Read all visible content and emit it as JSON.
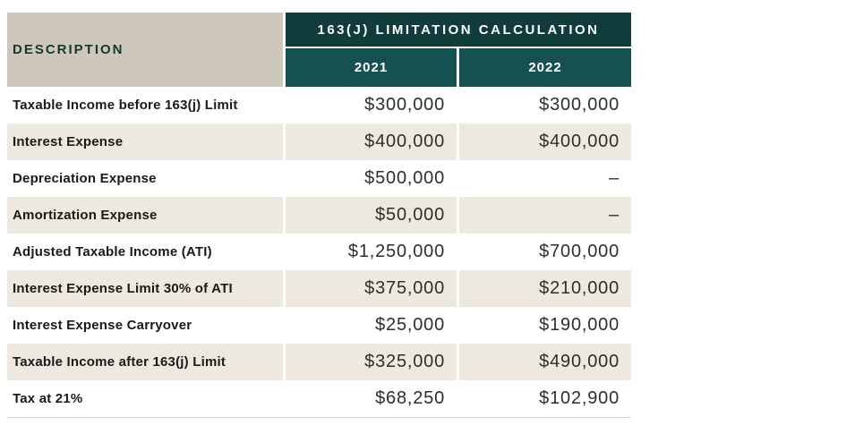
{
  "colors": {
    "header_dark_teal": "#113c3c",
    "subheader_teal": "#155150",
    "description_header_bg": "#cec7bb",
    "alt_row_bg": "#ede9e1",
    "row_bg": "#ffffff",
    "label_text": "#1a1a1a",
    "value_text": "#2e2e2e",
    "header_text": "#ffffff"
  },
  "chart_data": {
    "type": "table",
    "title": "163(J) LIMITATION CALCULATION",
    "columns": [
      "DESCRIPTION",
      "2021",
      "2022"
    ],
    "rows": [
      [
        "Taxable Income before 163(j) Limit",
        "$300,000",
        "$300,000"
      ],
      [
        "Interest Expense",
        "$400,000",
        "$400,000"
      ],
      [
        "Depreciation Expense",
        "$500,000",
        "–"
      ],
      [
        "Amortization Expense",
        "$50,000",
        "–"
      ],
      [
        "Adjusted Taxable Income (ATI)",
        "$1,250,000",
        "$700,000"
      ],
      [
        "Interest Expense Limit 30% of ATI",
        "$375,000",
        "$210,000"
      ],
      [
        "Interest Expense Carryover",
        "$25,000",
        "$190,000"
      ],
      [
        "Taxable Income after 163(j) Limit",
        "$325,000",
        "$490,000"
      ],
      [
        "Tax at 21%",
        "$68,250",
        "$102,900"
      ]
    ]
  }
}
